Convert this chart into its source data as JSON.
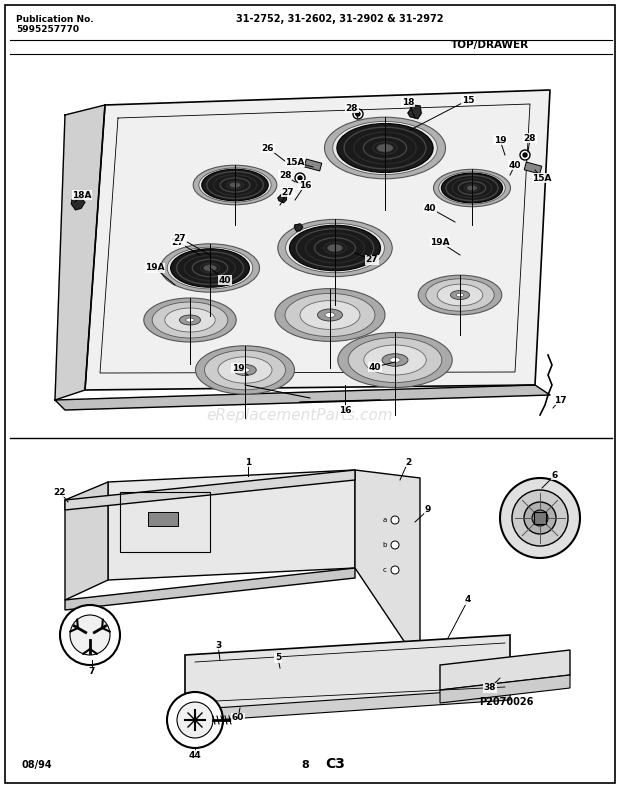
{
  "bg_color": "#ffffff",
  "border_color": "#000000",
  "title_top_left": "Publication No.",
  "title_top_left2": "5995257770",
  "title_top_center": "31-2752, 31-2602, 31-2902 & 31-2972",
  "section_label": "TOP/DRAWER",
  "watermark": "eReplacementParts.com",
  "bottom_left": "08/94",
  "bottom_center": "8",
  "bottom_right": "C3",
  "page_note": "P2070026",
  "fig_width": 6.2,
  "fig_height": 7.88,
  "dpi": 100
}
